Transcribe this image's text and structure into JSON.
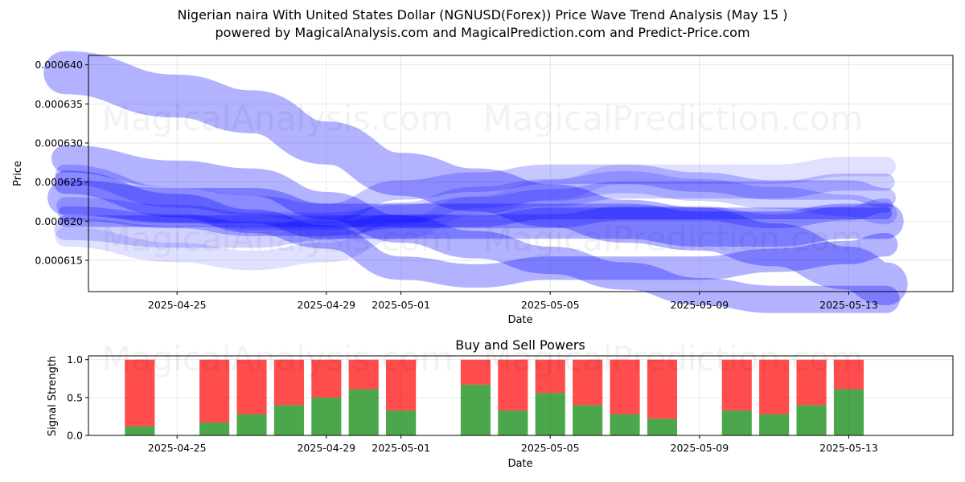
{
  "title": "Nigerian naira With United States Dollar (NGNUSD(Forex)) Price Wave Trend Analysis (May 15 )",
  "subtitle": "powered by MagicalAnalysis.com and MagicalPrediction.com and Predict-Price.com",
  "watermarks": [
    "MagicalAnalysis.com",
    "MagicalPrediction.com"
  ],
  "colors": {
    "wave": "#0000ff",
    "buy": "#008000",
    "sell": "#ff0000"
  },
  "chart_data": [
    {
      "type": "area",
      "title": "",
      "xlabel": "Date",
      "ylabel": "Price",
      "x_ticks": [
        "2025-04-25",
        "2025-04-29",
        "2025-05-01",
        "2025-05-05",
        "2025-05-09",
        "2025-05-13"
      ],
      "y_ticks": [
        "0.000615",
        "0.000620",
        "0.000625",
        "0.000630",
        "0.000635",
        "0.000640"
      ],
      "xlim": [
        "2025-04-22T15:00",
        "2025-05-15T19:00"
      ],
      "ylim": [
        0.000611,
        0.0006412
      ],
      "grid": true,
      "series": [
        {
          "x": [
            "2025-04-22",
            "2025-04-25",
            "2025-04-27",
            "2025-04-29",
            "2025-05-01",
            "2025-05-03",
            "2025-05-05",
            "2025-05-07",
            "2025-05-09",
            "2025-05-11",
            "2025-05-13",
            "2025-05-14"
          ],
          "values": [
            0.000639,
            0.000636,
            0.000634,
            0.00063,
            0.000626,
            0.000624,
            0.000622,
            0.00062,
            0.000619,
            0.000617,
            0.000614,
            0.000612
          ],
          "width": 5.5e-06,
          "opacity": 0.3
        },
        {
          "x": [
            "2025-04-22",
            "2025-04-25",
            "2025-04-27",
            "2025-04-29",
            "2025-05-01",
            "2025-05-03",
            "2025-05-05",
            "2025-05-07",
            "2025-05-09",
            "2025-05-11",
            "2025-05-13",
            "2025-05-14"
          ],
          "values": [
            0.000628,
            0.000626,
            0.000625,
            0.000622,
            0.000619,
            0.000617,
            0.000615,
            0.000613,
            0.000611,
            0.00061,
            0.00061,
            0.00061
          ],
          "width": 3.5e-06,
          "opacity": 0.3
        },
        {
          "x": [
            "2025-04-22",
            "2025-04-25",
            "2025-04-27",
            "2025-04-29",
            "2025-05-01",
            "2025-05-03",
            "2025-05-05",
            "2025-05-07",
            "2025-05-09",
            "2025-05-11",
            "2025-05-13",
            "2025-05-14"
          ],
          "values": [
            0.000625,
            0.000622,
            0.00062,
            0.000618,
            0.000614,
            0.000613,
            0.000614,
            0.000614,
            0.000614,
            0.000615,
            0.000616,
            0.000617
          ],
          "width": 3e-06,
          "opacity": 0.3
        },
        {
          "x": [
            "2025-04-22",
            "2025-04-25",
            "2025-04-27",
            "2025-04-29",
            "2025-05-01",
            "2025-05-03",
            "2025-05-05",
            "2025-05-07",
            "2025-05-09",
            "2025-05-11",
            "2025-05-13",
            "2025-05-14"
          ],
          "values": [
            0.000626,
            0.000623,
            0.000622,
            0.000621,
            0.000624,
            0.000625,
            0.000626,
            0.000626,
            0.000625,
            0.000624,
            0.000624,
            0.000623
          ],
          "width": 2.5e-06,
          "opacity": 0.22
        },
        {
          "x": [
            "2025-04-22",
            "2025-04-25",
            "2025-04-27",
            "2025-04-29",
            "2025-05-01",
            "2025-05-03",
            "2025-05-05",
            "2025-05-07",
            "2025-05-09",
            "2025-05-11",
            "2025-05-13",
            "2025-05-14"
          ],
          "values": [
            0.000622,
            0.000621,
            0.00062,
            0.00062,
            0.000621,
            0.000622,
            0.000623,
            0.000624,
            0.000624,
            0.000624,
            0.000625,
            0.000625
          ],
          "width": 2.2e-06,
          "opacity": 0.2
        },
        {
          "x": [
            "2025-04-22",
            "2025-04-25",
            "2025-04-27",
            "2025-04-29",
            "2025-05-01",
            "2025-05-03",
            "2025-05-05",
            "2025-05-07",
            "2025-05-09",
            "2025-05-11",
            "2025-05-13",
            "2025-05-14"
          ],
          "values": [
            0.000621,
            0.00062,
            0.000619,
            0.000619,
            0.00062,
            0.00062,
            0.00062,
            0.000621,
            0.000621,
            0.00062,
            0.000621,
            0.000622
          ],
          "width": 1.8e-06,
          "opacity": 0.25
        },
        {
          "x": [
            "2025-04-22",
            "2025-04-25",
            "2025-04-27",
            "2025-04-29",
            "2025-05-01",
            "2025-05-03",
            "2025-05-05",
            "2025-05-07",
            "2025-05-09",
            "2025-05-11",
            "2025-05-13",
            "2025-05-14"
          ],
          "values": [
            0.000619,
            0.000618,
            0.000618,
            0.000619,
            0.000621,
            0.000623,
            0.000624,
            0.000625,
            0.000624,
            0.000623,
            0.000622,
            0.000621
          ],
          "width": 2.8e-06,
          "opacity": 0.18
        },
        {
          "x": [
            "2025-04-22",
            "2025-04-25",
            "2025-04-27",
            "2025-04-29",
            "2025-05-01",
            "2025-05-03",
            "2025-05-05",
            "2025-05-07",
            "2025-05-09",
            "2025-05-11",
            "2025-05-13",
            "2025-05-14"
          ],
          "values": [
            0.000618,
            0.000616,
            0.000615,
            0.000616,
            0.000619,
            0.000622,
            0.000624,
            0.000626,
            0.000626,
            0.000626,
            0.000627,
            0.000627
          ],
          "width": 2.5e-06,
          "opacity": 0.12
        },
        {
          "x": [
            "2025-04-22",
            "2025-04-25",
            "2025-04-27",
            "2025-04-29",
            "2025-05-01",
            "2025-05-03",
            "2025-05-05",
            "2025-05-07",
            "2025-05-09",
            "2025-05-11",
            "2025-05-13",
            "2025-05-14"
          ],
          "values": [
            0.000623,
            0.000622,
            0.000622,
            0.00062,
            0.00062,
            0.00062,
            0.00062,
            0.00062,
            0.000619,
            0.000619,
            0.00062,
            0.00062
          ],
          "width": 4.5e-06,
          "opacity": 0.3
        },
        {
          "x": [
            "2025-04-22",
            "2025-04-25",
            "2025-04-27",
            "2025-04-29",
            "2025-05-01",
            "2025-05-03",
            "2025-05-05",
            "2025-05-07",
            "2025-05-09",
            "2025-05-11",
            "2025-05-13",
            "2025-05-14"
          ],
          "values": [
            0.00062,
            0.00062,
            0.00062,
            0.00062,
            0.00062,
            0.00062,
            0.000621,
            0.000621,
            0.000621,
            0.000621,
            0.000621,
            0.000621
          ],
          "width": 1.5e-06,
          "opacity": 0.3
        }
      ]
    },
    {
      "type": "bar",
      "title": "Buy and Sell Powers",
      "xlabel": "Date",
      "ylabel": "Signal Strength",
      "x_ticks": [
        "2025-04-25",
        "2025-04-29",
        "2025-05-01",
        "2025-05-05",
        "2025-05-09",
        "2025-05-13"
      ],
      "y_ticks": [
        "0.0",
        "0.5",
        "1.0"
      ],
      "xlim": [
        "2025-04-22T15:00",
        "2025-05-15T19:00"
      ],
      "ylim": [
        0,
        1.05
      ],
      "categories": [
        "2025-04-24",
        "2025-04-26",
        "2025-04-27",
        "2025-04-28",
        "2025-04-29",
        "2025-04-30",
        "2025-05-01",
        "2025-05-03",
        "2025-05-04",
        "2025-05-05",
        "2025-05-06",
        "2025-05-07",
        "2025-05-08",
        "2025-05-10",
        "2025-05-11",
        "2025-05-12",
        "2025-05-13"
      ],
      "series": [
        {
          "name": "buy",
          "values": [
            0.12,
            0.17,
            0.28,
            0.4,
            0.5,
            0.61,
            0.33,
            0.67,
            0.33,
            0.56,
            0.4,
            0.28,
            0.22,
            0.33,
            0.28,
            0.4,
            0.61
          ]
        },
        {
          "name": "sell",
          "values": [
            0.88,
            0.83,
            0.72,
            0.6,
            0.5,
            0.39,
            0.67,
            0.33,
            0.67,
            0.44,
            0.6,
            0.72,
            0.78,
            0.67,
            0.72,
            0.6,
            0.39
          ]
        }
      ],
      "grid": true
    }
  ]
}
